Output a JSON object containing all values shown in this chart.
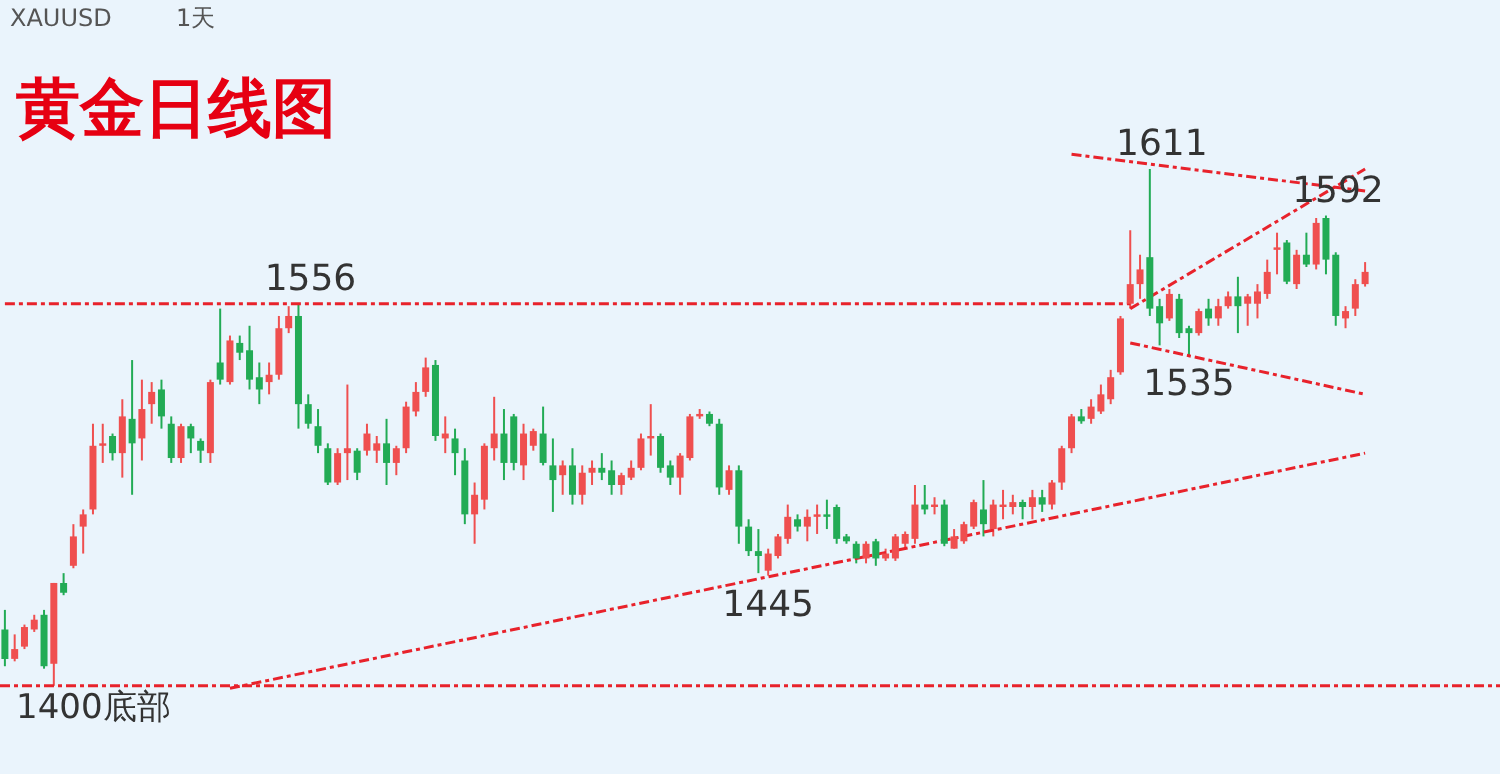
{
  "chart_data": {
    "type": "candlestick",
    "title": "黄金日线图",
    "categories": [
      null,
      null,
      null,
      null,
      null,
      null,
      null,
      null,
      null,
      null,
      null,
      null,
      null,
      null,
      null,
      null,
      null,
      null,
      null,
      null,
      null,
      null,
      null,
      null,
      null,
      null,
      null,
      null,
      null,
      null,
      null,
      null,
      null,
      null,
      null,
      null,
      null,
      null,
      null,
      null,
      null,
      null,
      null,
      null,
      null,
      null,
      null,
      null,
      null,
      null,
      null,
      null,
      null,
      null,
      null,
      null,
      null,
      null,
      null,
      null,
      null,
      null,
      null,
      null,
      null,
      null,
      null,
      null,
      null,
      null,
      null,
      null,
      null,
      null,
      null,
      null,
      null,
      null,
      null,
      null,
      null,
      null,
      null,
      null,
      null,
      null,
      null,
      null,
      null,
      null,
      null,
      null,
      null,
      null,
      null,
      null,
      null,
      null,
      null,
      null,
      null,
      null,
      null,
      null,
      null,
      null,
      null,
      null,
      null,
      null,
      null,
      null,
      null,
      null,
      null,
      null,
      null,
      null,
      null,
      null,
      null,
      null,
      null,
      null,
      null,
      null,
      null,
      null,
      null,
      null,
      null,
      null,
      null,
      null,
      null,
      null,
      null,
      null,
      null,
      null
    ],
    "ohlc": [
      [
        1423,
        1431,
        1408,
        1411
      ],
      [
        1411,
        1421,
        1410,
        1415
      ],
      [
        1416,
        1425,
        1415,
        1424
      ],
      [
        1423,
        1429,
        1422,
        1427
      ],
      [
        1429,
        1431,
        1407,
        1408
      ],
      [
        1409,
        1442,
        1400,
        1442
      ],
      [
        1442,
        1446,
        1437,
        1438
      ],
      [
        1449,
        1466,
        1448,
        1461
      ],
      [
        1465,
        1472,
        1454,
        1470
      ],
      [
        1472,
        1507,
        1470,
        1498
      ],
      [
        1498,
        1507,
        1491,
        1499
      ],
      [
        1502,
        1503,
        1492,
        1495
      ],
      [
        1495,
        1517,
        1485,
        1510
      ],
      [
        1509,
        1533,
        1478,
        1499
      ],
      [
        1501,
        1525,
        1492,
        1513
      ],
      [
        1515,
        1524,
        1507,
        1520
      ],
      [
        1521,
        1525,
        1505,
        1510
      ],
      [
        1507,
        1510,
        1491,
        1493
      ],
      [
        1493,
        1507,
        1491,
        1506
      ],
      [
        1506,
        1507,
        1495,
        1501
      ],
      [
        1500,
        1501,
        1491,
        1496
      ],
      [
        1495,
        1525,
        1491,
        1524
      ],
      [
        1532,
        1554,
        1523,
        1525
      ],
      [
        1524,
        1543,
        1523,
        1541
      ],
      [
        1540,
        1543,
        1533,
        1536
      ],
      [
        1537,
        1547,
        1521,
        1525
      ],
      [
        1526,
        1532,
        1515,
        1521
      ],
      [
        1524,
        1532,
        1519,
        1527
      ],
      [
        1527,
        1551,
        1525,
        1546
      ],
      [
        1546,
        1555,
        1544,
        1551
      ],
      [
        1551,
        1556,
        1505,
        1515
      ],
      [
        1515,
        1519,
        1505,
        1507
      ],
      [
        1506,
        1513,
        1495,
        1498
      ],
      [
        1497,
        1499,
        1482,
        1483
      ],
      [
        1483,
        1497,
        1482,
        1495
      ],
      [
        1495,
        1523,
        1484,
        1497
      ],
      [
        1496,
        1497,
        1484,
        1487
      ],
      [
        1496,
        1507,
        1494,
        1503
      ],
      [
        1496,
        1502,
        1491,
        1499
      ],
      [
        1499,
        1509,
        1482,
        1491
      ],
      [
        1491,
        1498,
        1486,
        1497
      ],
      [
        1497,
        1516,
        1495,
        1514
      ],
      [
        1512,
        1524,
        1510,
        1520
      ],
      [
        1520,
        1534,
        1518,
        1530
      ],
      [
        1531,
        1533,
        1500,
        1502
      ],
      [
        1501,
        1510,
        1495,
        1503
      ],
      [
        1501,
        1505,
        1486,
        1495
      ],
      [
        1492,
        1497,
        1466,
        1470
      ],
      [
        1470,
        1483,
        1458,
        1478
      ],
      [
        1476,
        1499,
        1472,
        1498
      ],
      [
        1497,
        1518,
        1492,
        1503
      ],
      [
        1503,
        1513,
        1484,
        1491
      ],
      [
        1510,
        1511,
        1488,
        1491
      ],
      [
        1490,
        1507,
        1484,
        1503
      ],
      [
        1498,
        1505,
        1496,
        1504
      ],
      [
        1503,
        1514,
        1490,
        1491
      ],
      [
        1490,
        1501,
        1471,
        1484
      ],
      [
        1486,
        1492,
        1478,
        1490
      ],
      [
        1490,
        1497,
        1474,
        1478
      ],
      [
        1478,
        1490,
        1474,
        1487
      ],
      [
        1487,
        1492,
        1482,
        1489
      ],
      [
        1489,
        1495,
        1484,
        1487
      ],
      [
        1488,
        1492,
        1478,
        1482
      ],
      [
        1482,
        1487,
        1478,
        1486
      ],
      [
        1485,
        1492,
        1484,
        1489
      ],
      [
        1489,
        1503,
        1488,
        1501
      ],
      [
        1501,
        1515,
        1494,
        1502
      ],
      [
        1502,
        1503,
        1487,
        1489
      ],
      [
        1490,
        1492,
        1482,
        1485
      ],
      [
        1485,
        1495,
        1478,
        1494
      ],
      [
        1493,
        1511,
        1492,
        1510
      ],
      [
        1510,
        1513,
        1509,
        1511
      ],
      [
        1511,
        1512,
        1506,
        1507
      ],
      [
        1507,
        1509,
        1478,
        1481
      ],
      [
        1480,
        1490,
        1478,
        1488
      ],
      [
        1488,
        1490,
        1458,
        1465
      ],
      [
        1465,
        1468,
        1453,
        1455
      ],
      [
        1455,
        1464,
        1446,
        1453
      ],
      [
        1447,
        1456,
        1445,
        1454
      ],
      [
        1453,
        1462,
        1452,
        1461
      ],
      [
        1460,
        1474,
        1458,
        1469
      ],
      [
        1468,
        1470,
        1463,
        1465
      ],
      [
        1465,
        1472,
        1459,
        1469
      ],
      [
        1469,
        1474,
        1462,
        1470
      ],
      [
        1470,
        1476,
        1464,
        1469
      ],
      [
        1473,
        1474,
        1458,
        1460
      ],
      [
        1461,
        1462,
        1458,
        1459
      ],
      [
        1458,
        1459,
        1450,
        1452
      ],
      [
        1452,
        1459,
        1450,
        1458
      ],
      [
        1459,
        1460,
        1449,
        1452
      ],
      [
        1452,
        1456,
        1451,
        1454
      ],
      [
        1452,
        1462,
        1451,
        1461
      ],
      [
        1458,
        1463,
        1456,
        1462
      ],
      [
        1460,
        1482,
        1458,
        1474
      ],
      [
        1474,
        1482,
        1470,
        1472
      ],
      [
        1473,
        1477,
        1470,
        1474
      ],
      [
        1474,
        1476,
        1457,
        1458
      ],
      [
        1456,
        1464,
        1456,
        1461
      ],
      [
        1459,
        1467,
        1458,
        1466
      ],
      [
        1465,
        1476,
        1464,
        1475
      ],
      [
        1472,
        1484,
        1461,
        1466
      ],
      [
        1464,
        1476,
        1461,
        1474
      ],
      [
        1473,
        1480,
        1468,
        1474
      ],
      [
        1473,
        1478,
        1470,
        1475
      ],
      [
        1475,
        1476,
        1468,
        1473
      ],
      [
        1473,
        1480,
        1468,
        1477
      ],
      [
        1477,
        1480,
        1471,
        1474
      ],
      [
        1474,
        1484,
        1472,
        1483
      ],
      [
        1483,
        1498,
        1480,
        1497
      ],
      [
        1497,
        1511,
        1495,
        1510
      ],
      [
        1510,
        1513,
        1507,
        1508
      ],
      [
        1509,
        1517,
        1507,
        1514
      ],
      [
        1512,
        1523,
        1511,
        1519
      ],
      [
        1517,
        1529,
        1515,
        1526
      ],
      [
        1528,
        1551,
        1527,
        1550
      ],
      [
        1556,
        1586,
        1554,
        1564
      ],
      [
        1564,
        1576,
        1558,
        1570
      ],
      [
        1575,
        1611,
        1551,
        1554
      ],
      [
        1555,
        1558,
        1539,
        1548
      ],
      [
        1550,
        1562,
        1549,
        1560
      ],
      [
        1558,
        1560,
        1542,
        1544
      ],
      [
        1546,
        1547,
        1535,
        1544
      ],
      [
        1544,
        1554,
        1543,
        1553
      ],
      [
        1554,
        1558,
        1547,
        1550
      ],
      [
        1550,
        1558,
        1547,
        1555
      ],
      [
        1555,
        1561,
        1554,
        1559
      ],
      [
        1559,
        1567,
        1544,
        1555
      ],
      [
        1556,
        1560,
        1547,
        1559
      ],
      [
        1556,
        1564,
        1550,
        1561
      ],
      [
        1560,
        1574,
        1558,
        1569
      ],
      [
        1578,
        1585,
        1568,
        1579
      ],
      [
        1581,
        1582,
        1564,
        1565
      ],
      [
        1564,
        1578,
        1562,
        1576
      ],
      [
        1576,
        1585,
        1571,
        1572
      ],
      [
        1572,
        1591,
        1570,
        1589
      ],
      [
        1591,
        1592,
        1568,
        1574
      ],
      [
        1576,
        1577,
        1547,
        1551
      ],
      [
        1550,
        1555,
        1546,
        1553
      ],
      [
        1554,
        1566,
        1551,
        1564
      ],
      [
        1564,
        1573,
        1563,
        1569
      ]
    ],
    "colors": [
      "#22ab55",
      "#ef4f4f",
      "#ef4f4f",
      "#ef4f4f",
      "#22ab55",
      "#ef4f4f",
      "#22ab55",
      "#ef4f4f",
      "#ef4f4f",
      "#ef4f4f",
      "#ef4f4f",
      "#22ab55",
      "#ef4f4f",
      "#22ab55",
      "#ef4f4f",
      "#ef4f4f",
      "#22ab55",
      "#22ab55",
      "#ef4f4f",
      "#22ab55",
      "#22ab55",
      "#ef4f4f",
      "#22ab55",
      "#ef4f4f",
      "#22ab55",
      "#22ab55",
      "#22ab55",
      "#ef4f4f",
      "#ef4f4f",
      "#ef4f4f",
      "#22ab55",
      "#22ab55",
      "#22ab55",
      "#22ab55",
      "#ef4f4f",
      "#ef4f4f",
      "#22ab55",
      "#ef4f4f",
      "#ef4f4f",
      "#22ab55",
      "#ef4f4f",
      "#ef4f4f",
      "#ef4f4f",
      "#ef4f4f",
      "#22ab55",
      "#ef4f4f",
      "#22ab55",
      "#22ab55",
      "#ef4f4f",
      "#ef4f4f",
      "#ef4f4f",
      "#22ab55",
      "#22ab55",
      "#ef4f4f",
      "#ef4f4f",
      "#22ab55",
      "#22ab55",
      "#ef4f4f",
      "#22ab55",
      "#ef4f4f",
      "#ef4f4f",
      "#22ab55",
      "#22ab55",
      "#ef4f4f",
      "#ef4f4f",
      "#ef4f4f",
      "#ef4f4f",
      "#22ab55",
      "#22ab55",
      "#ef4f4f",
      "#ef4f4f",
      "#ef4f4f",
      "#22ab55",
      "#22ab55",
      "#ef4f4f",
      "#22ab55",
      "#22ab55",
      "#22ab55",
      "#ef4f4f",
      "#ef4f4f",
      "#ef4f4f",
      "#22ab55",
      "#ef4f4f",
      "#ef4f4f",
      "#22ab55",
      "#22ab55",
      "#22ab55",
      "#22ab55",
      "#ef4f4f",
      "#22ab55",
      "#ef4f4f",
      "#ef4f4f",
      "#ef4f4f",
      "#ef4f4f",
      "#22ab55",
      "#ef4f4f",
      "#22ab55",
      "#ef4f4f",
      "#ef4f4f",
      "#ef4f4f",
      "#22ab55",
      "#ef4f4f",
      "#ef4f4f",
      "#ef4f4f",
      "#22ab55",
      "#ef4f4f",
      "#22ab55",
      "#ef4f4f",
      "#ef4f4f",
      "#ef4f4f",
      "#22ab55",
      "#ef4f4f",
      "#ef4f4f",
      "#ef4f4f",
      "#ef4f4f",
      "#ef4f4f",
      "#ef4f4f",
      "#22ab55",
      "#22ab55",
      "#ef4f4f",
      "#22ab55",
      "#22ab55",
      "#ef4f4f",
      "#22ab55",
      "#ef4f4f",
      "#ef4f4f",
      "#22ab55",
      "#ef4f4f",
      "#ef4f4f",
      "#ef4f4f",
      "#ef4f4f",
      "#22ab55",
      "#ef4f4f",
      "#22ab55",
      "#ef4f4f",
      "#22ab55",
      "#22ab55",
      "#ef4f4f",
      "#ef4f4f",
      "#ef4f4f"
    ],
    "series": [
      {
        "type": "line",
        "color": "#e8222b",
        "line_style": "dashed",
        "values": [
          1556,
          null,
          null,
          null,
          null,
          null,
          null,
          null,
          null,
          null,
          null,
          null,
          null,
          null,
          null,
          null,
          null,
          null,
          null,
          null,
          null,
          null,
          null,
          null,
          null,
          null,
          null,
          null,
          null,
          null,
          null,
          null,
          null,
          null,
          null,
          null,
          null,
          null,
          null,
          null,
          null,
          null,
          null,
          null,
          null,
          null,
          null,
          null,
          null,
          null,
          null,
          null,
          null,
          null,
          null,
          null,
          null,
          null,
          null,
          null,
          null,
          null,
          null,
          null,
          null,
          null,
          null,
          null,
          null,
          null,
          null,
          null,
          null,
          null,
          null,
          null,
          null,
          null,
          null,
          null,
          null,
          null,
          null,
          null,
          null,
          null,
          null,
          null,
          null,
          null,
          null,
          null,
          null,
          null,
          null,
          null,
          null,
          null,
          null,
          null,
          null,
          null,
          null,
          null,
          null,
          null,
          null,
          null,
          null,
          null,
          null,
          null,
          null,
          null,
          null,
          1556,
          null,
          null,
          null,
          null,
          null,
          null,
          null,
          null,
          null,
          null,
          null,
          null,
          null,
          null,
          null,
          null,
          null,
          null,
          null,
          null,
          null,
          null,
          null,
          null
        ]
      },
      {
        "type": "line",
        "color": "#e8222b",
        "line_style": "dashed",
        "values": [
          null,
          null,
          null,
          null,
          null,
          null,
          null,
          null,
          null,
          null,
          null,
          null,
          null,
          null,
          null,
          null,
          null,
          null,
          null,
          null,
          null,
          null,
          null,
          1399,
          null,
          null,
          null,
          null,
          null,
          null,
          null,
          null,
          null,
          null,
          null,
          null,
          null,
          null,
          null,
          null,
          null,
          null,
          null,
          null,
          null,
          null,
          null,
          null,
          null,
          null,
          null,
          null,
          null,
          null,
          null,
          null,
          null,
          null,
          null,
          null,
          null,
          null,
          null,
          null,
          null,
          null,
          null,
          null,
          null,
          null,
          null,
          null,
          null,
          null,
          null,
          null,
          null,
          null,
          null,
          null,
          null,
          null,
          null,
          null,
          null,
          null,
          null,
          null,
          null,
          null,
          null,
          null,
          null,
          null,
          null,
          null,
          null,
          null,
          null,
          null,
          null,
          null,
          null,
          null,
          null,
          null,
          null,
          null,
          null,
          null,
          null,
          null,
          null,
          null,
          null,
          null,
          null,
          null,
          null,
          null,
          null,
          null,
          null,
          null,
          null,
          null,
          null,
          null,
          null,
          null,
          null,
          null,
          null,
          null,
          null,
          null,
          null,
          null,
          null,
          1495
        ]
      },
      {
        "type": "line",
        "color": "#e8222b",
        "line_style": "dashed",
        "values": [
          null,
          null,
          null,
          null,
          null,
          null,
          null,
          null,
          null,
          null,
          null,
          null,
          null,
          null,
          null,
          null,
          null,
          null,
          null,
          null,
          null,
          null,
          null,
          null,
          null,
          null,
          null,
          null,
          null,
          null,
          null,
          null,
          null,
          null,
          null,
          null,
          null,
          null,
          null,
          null,
          null,
          null,
          null,
          null,
          null,
          null,
          null,
          null,
          null,
          null,
          null,
          null,
          null,
          null,
          null,
          null,
          null,
          null,
          null,
          null,
          null,
          null,
          null,
          null,
          null,
          null,
          null,
          null,
          null,
          null,
          null,
          null,
          null,
          null,
          null,
          null,
          null,
          null,
          null,
          null,
          null,
          null,
          null,
          null,
          null,
          null,
          null,
          null,
          null,
          null,
          null,
          null,
          null,
          null,
          null,
          null,
          null,
          null,
          null,
          null,
          null,
          null,
          null,
          null,
          null,
          null,
          null,
          null,
          null,
          null,
          null,
          null,
          null,
          null,
          null,
          1540,
          null,
          null,
          null,
          null,
          null,
          null,
          null,
          null,
          null,
          null,
          null,
          null,
          null,
          null,
          null,
          null,
          null,
          null,
          null,
          null,
          null,
          null,
          null,
          1519
        ]
      },
      {
        "type": "line",
        "color": "#e8222b",
        "line_style": "dashed",
        "values": [
          null,
          null,
          null,
          null,
          null,
          null,
          null,
          null,
          null,
          null,
          null,
          null,
          null,
          null,
          null,
          null,
          null,
          null,
          null,
          null,
          null,
          null,
          null,
          null,
          null,
          null,
          null,
          null,
          null,
          null,
          null,
          null,
          null,
          null,
          null,
          null,
          null,
          null,
          null,
          null,
          null,
          null,
          null,
          null,
          null,
          null,
          null,
          null,
          null,
          null,
          null,
          null,
          null,
          null,
          null,
          null,
          null,
          null,
          null,
          null,
          null,
          null,
          null,
          null,
          null,
          null,
          null,
          null,
          null,
          null,
          null,
          null,
          null,
          null,
          null,
          null,
          null,
          null,
          null,
          null,
          null,
          null,
          null,
          null,
          null,
          null,
          null,
          null,
          null,
          null,
          null,
          null,
          null,
          null,
          null,
          null,
          null,
          null,
          null,
          null,
          null,
          null,
          null,
          null,
          null,
          null,
          null,
          null,
          null,
          null,
          null,
          null,
          null,
          null,
          null,
          1554,
          null,
          null,
          null,
          null,
          null,
          null,
          null,
          null,
          null,
          null,
          null,
          null,
          null,
          null,
          null,
          null,
          null,
          null,
          null,
          null,
          null,
          null,
          null,
          1611
        ]
      },
      {
        "type": "line",
        "color": "#e8222b",
        "line_style": "dashed",
        "values": [
          null,
          null,
          null,
          null,
          null,
          null,
          null,
          null,
          null,
          null,
          null,
          null,
          null,
          null,
          null,
          null,
          null,
          null,
          null,
          null,
          null,
          null,
          null,
          null,
          null,
          null,
          null,
          null,
          null,
          null,
          null,
          null,
          null,
          null,
          null,
          null,
          null,
          null,
          null,
          null,
          null,
          null,
          null,
          null,
          null,
          null,
          null,
          null,
          null,
          null,
          null,
          null,
          null,
          null,
          null,
          null,
          null,
          null,
          null,
          null,
          null,
          null,
          null,
          null,
          null,
          null,
          null,
          null,
          null,
          null,
          null,
          null,
          null,
          null,
          null,
          null,
          null,
          null,
          null,
          null,
          null,
          null,
          null,
          null,
          null,
          null,
          null,
          null,
          null,
          null,
          null,
          null,
          null,
          null,
          null,
          null,
          null,
          null,
          null,
          null,
          null,
          null,
          null,
          null,
          null,
          null,
          null,
          null,
          null,
          1617,
          null,
          null,
          null,
          null,
          null,
          null,
          null,
          null,
          null,
          null,
          null,
          null,
          null,
          null,
          null,
          null,
          null,
          null,
          null,
          null,
          null,
          null,
          null,
          null,
          null,
          null,
          null,
          null,
          null,
          1602
        ]
      }
    ],
    "ref_lines": [
      {
        "axis": "y",
        "value": 1400,
        "label": "1400底部",
        "color": "#e8222b",
        "line_style": "dashed"
      }
    ],
    "annotations": [
      "XAUUSD",
      "1天",
      {
        "text": "1556",
        "y": 1556
      },
      {
        "text": "1611",
        "y": 1611
      },
      {
        "text": "1592",
        "y": 1592
      },
      {
        "text": "1535",
        "y": 1535
      },
      {
        "text": "1445",
        "y": 1445
      }
    ],
    "ylim": [
      1364,
      1680
    ],
    "tick_labels": false,
    "grid": false
  }
}
